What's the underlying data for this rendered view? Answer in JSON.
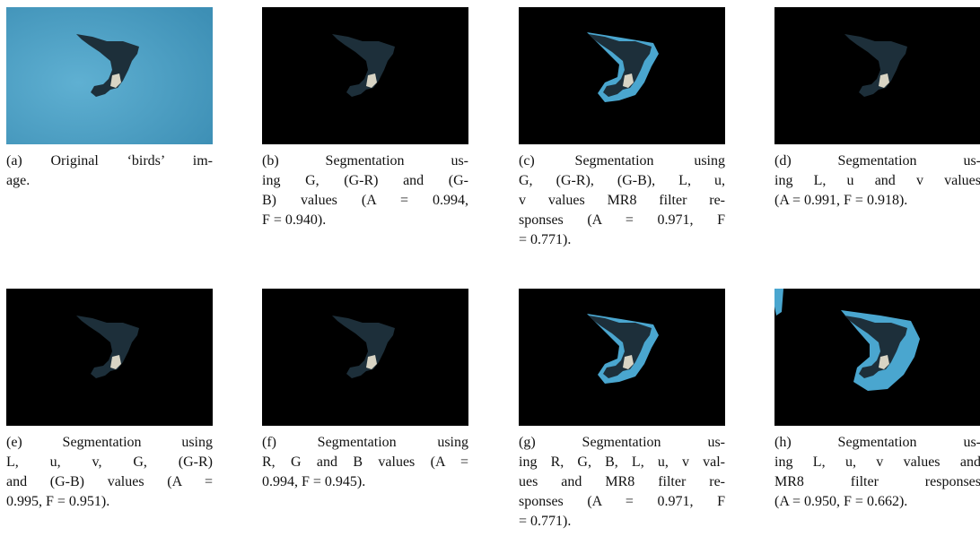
{
  "subfigures": [
    {
      "caption": [
        "(a) Original ‘birds’ im-",
        "age."
      ]
    },
    {
      "caption": [
        "(b) Segmentation us-",
        "ing G, (G-R) and (G-",
        "B) values (A = 0.994,",
        "F = 0.940)."
      ]
    },
    {
      "caption": [
        "(c) Segmentation using",
        "G, (G-R), (G-B), L, u,",
        "v values MR8 filter re-",
        "sponses (A = 0.971, F",
        "= 0.771)."
      ]
    },
    {
      "caption": [
        "(d) Segmentation us-",
        "ing L, u and v values",
        "(A = 0.991, F = 0.918)."
      ]
    },
    {
      "caption": [
        "(e) Segmentation using",
        "L, u, v, G, (G-R)",
        "and (G-B) values (A =",
        "0.995, F = 0.951)."
      ]
    },
    {
      "caption": [
        "(f) Segmentation using",
        "R, G and B values (A =",
        "0.994, F = 0.945)."
      ]
    },
    {
      "caption": [
        "(g) Segmentation us-",
        "ing R, G, B, L, u, v val-",
        "ues and MR8 filter re-",
        "sponses (A = 0.971, F",
        "= 0.771)."
      ]
    },
    {
      "caption": [
        "(h) Segmentation us-",
        "ing L, u, v values and",
        "MR8 filter responses",
        "(A = 0.950, F = 0.662)."
      ]
    }
  ]
}
